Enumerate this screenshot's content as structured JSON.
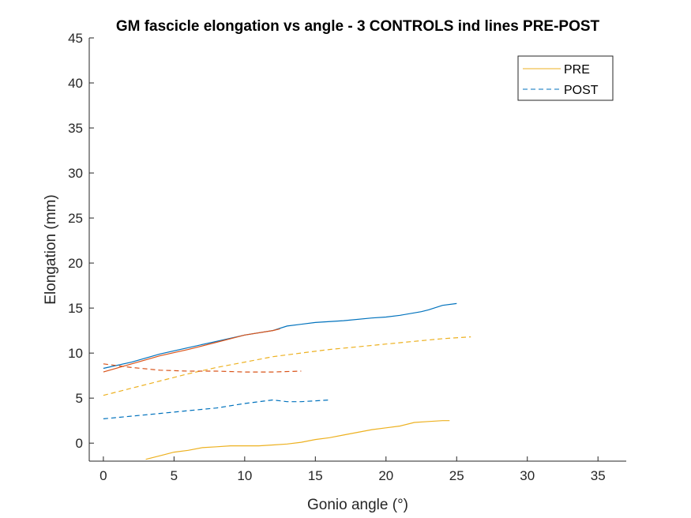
{
  "chart_data": {
    "type": "line",
    "title": "GM fascicle elongation vs angle - 3 CONTROLS ind lines PRE-POST",
    "xlabel": "Gonio angle (°)",
    "ylabel": "Elongation (mm)",
    "xlim": [
      -1,
      37
    ],
    "ylim": [
      -2,
      45
    ],
    "xticks": [
      0,
      5,
      10,
      15,
      20,
      25,
      30,
      35
    ],
    "yticks": [
      0,
      5,
      10,
      15,
      20,
      25,
      30,
      35,
      40,
      45
    ],
    "grid": false,
    "legend": {
      "placement": "top-right",
      "entries": [
        {
          "label": "PRE",
          "color": "#EDB120",
          "style": "solid"
        },
        {
          "label": "POST",
          "color": "#0072BD",
          "style": "dashed"
        }
      ]
    },
    "series": [
      {
        "color": "#0072BD",
        "style": "solid",
        "x": [
          0,
          2,
          4,
          6,
          8,
          10,
          12,
          13,
          15,
          17,
          19,
          20,
          21,
          22.5,
          23,
          24,
          25
        ],
        "y": [
          8.3,
          9.0,
          9.9,
          10.6,
          11.3,
          12.0,
          12.5,
          13.0,
          13.4,
          13.6,
          13.9,
          14.0,
          14.2,
          14.6,
          14.8,
          15.3,
          15.5
        ]
      },
      {
        "color": "#D95319",
        "style": "solid",
        "x": [
          0,
          2,
          4,
          6,
          8,
          10,
          12,
          12.5
        ],
        "y": [
          7.9,
          8.8,
          9.7,
          10.4,
          11.2,
          12.0,
          12.5,
          12.7
        ]
      },
      {
        "color": "#EDB120",
        "style": "solid",
        "x": [
          3,
          4,
          5,
          6,
          7,
          8,
          9,
          10,
          11,
          12,
          13,
          14,
          15,
          16,
          17,
          18,
          19,
          20,
          21,
          22,
          23,
          24,
          24.5
        ],
        "y": [
          -1.8,
          -1.4,
          -1.0,
          -0.8,
          -0.5,
          -0.4,
          -0.3,
          -0.3,
          -0.3,
          -0.2,
          -0.1,
          0.1,
          0.4,
          0.6,
          0.9,
          1.2,
          1.5,
          1.7,
          1.9,
          2.3,
          2.4,
          2.5,
          2.5
        ]
      },
      {
        "color": "#EDB120",
        "style": "dashed",
        "x": [
          0,
          2,
          4,
          6,
          8,
          10,
          12,
          14,
          16,
          18,
          20,
          22,
          24,
          26
        ],
        "y": [
          5.3,
          6.1,
          6.9,
          7.7,
          8.4,
          9.0,
          9.6,
          10.0,
          10.4,
          10.7,
          11.0,
          11.3,
          11.6,
          11.8
        ]
      },
      {
        "color": "#D95319",
        "style": "dashed",
        "x": [
          0,
          2,
          4,
          6,
          8,
          10,
          12,
          14
        ],
        "y": [
          8.8,
          8.4,
          8.1,
          8.0,
          8.0,
          7.9,
          7.9,
          8.0
        ]
      },
      {
        "color": "#0072BD",
        "style": "dashed",
        "x": [
          0,
          2,
          4,
          6,
          8,
          10,
          12,
          13,
          14,
          15,
          16
        ],
        "y": [
          2.7,
          3.0,
          3.3,
          3.6,
          3.9,
          4.4,
          4.8,
          4.6,
          4.6,
          4.7,
          4.8
        ]
      }
    ]
  }
}
